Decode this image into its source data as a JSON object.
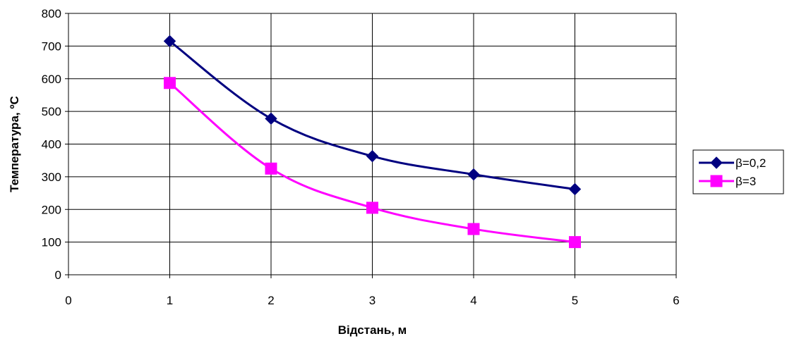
{
  "chart_data": {
    "type": "line",
    "title": "",
    "xlabel": "Відстань, м",
    "ylabel": "Температура, ºС",
    "xlim": [
      0,
      6
    ],
    "ylim": [
      0,
      800
    ],
    "xticks": [
      0,
      1,
      2,
      3,
      4,
      5,
      6
    ],
    "yticks": [
      0,
      100,
      200,
      300,
      400,
      500,
      600,
      700,
      800
    ],
    "grid": true,
    "legend_position": "right",
    "series": [
      {
        "name": "β=0,2",
        "color": "#000080",
        "marker": "diamond",
        "x": [
          1,
          2,
          3,
          4,
          5
        ],
        "y": [
          715,
          478,
          363,
          307,
          262
        ]
      },
      {
        "name": "β=3",
        "color": "#FF00FF",
        "marker": "square",
        "x": [
          1,
          2,
          3,
          4,
          5
        ],
        "y": [
          587,
          325,
          205,
          140,
          100
        ]
      }
    ]
  }
}
